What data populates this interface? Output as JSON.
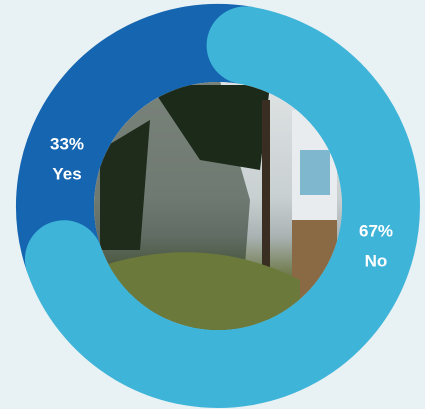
{
  "chart_data": {
    "type": "donut",
    "categories": [
      "Yes",
      "No"
    ],
    "values": [
      33,
      67
    ],
    "value_labels": [
      "33%",
      "67%"
    ],
    "colors": [
      "#1565b0",
      "#3fb4d9"
    ]
  }
}
